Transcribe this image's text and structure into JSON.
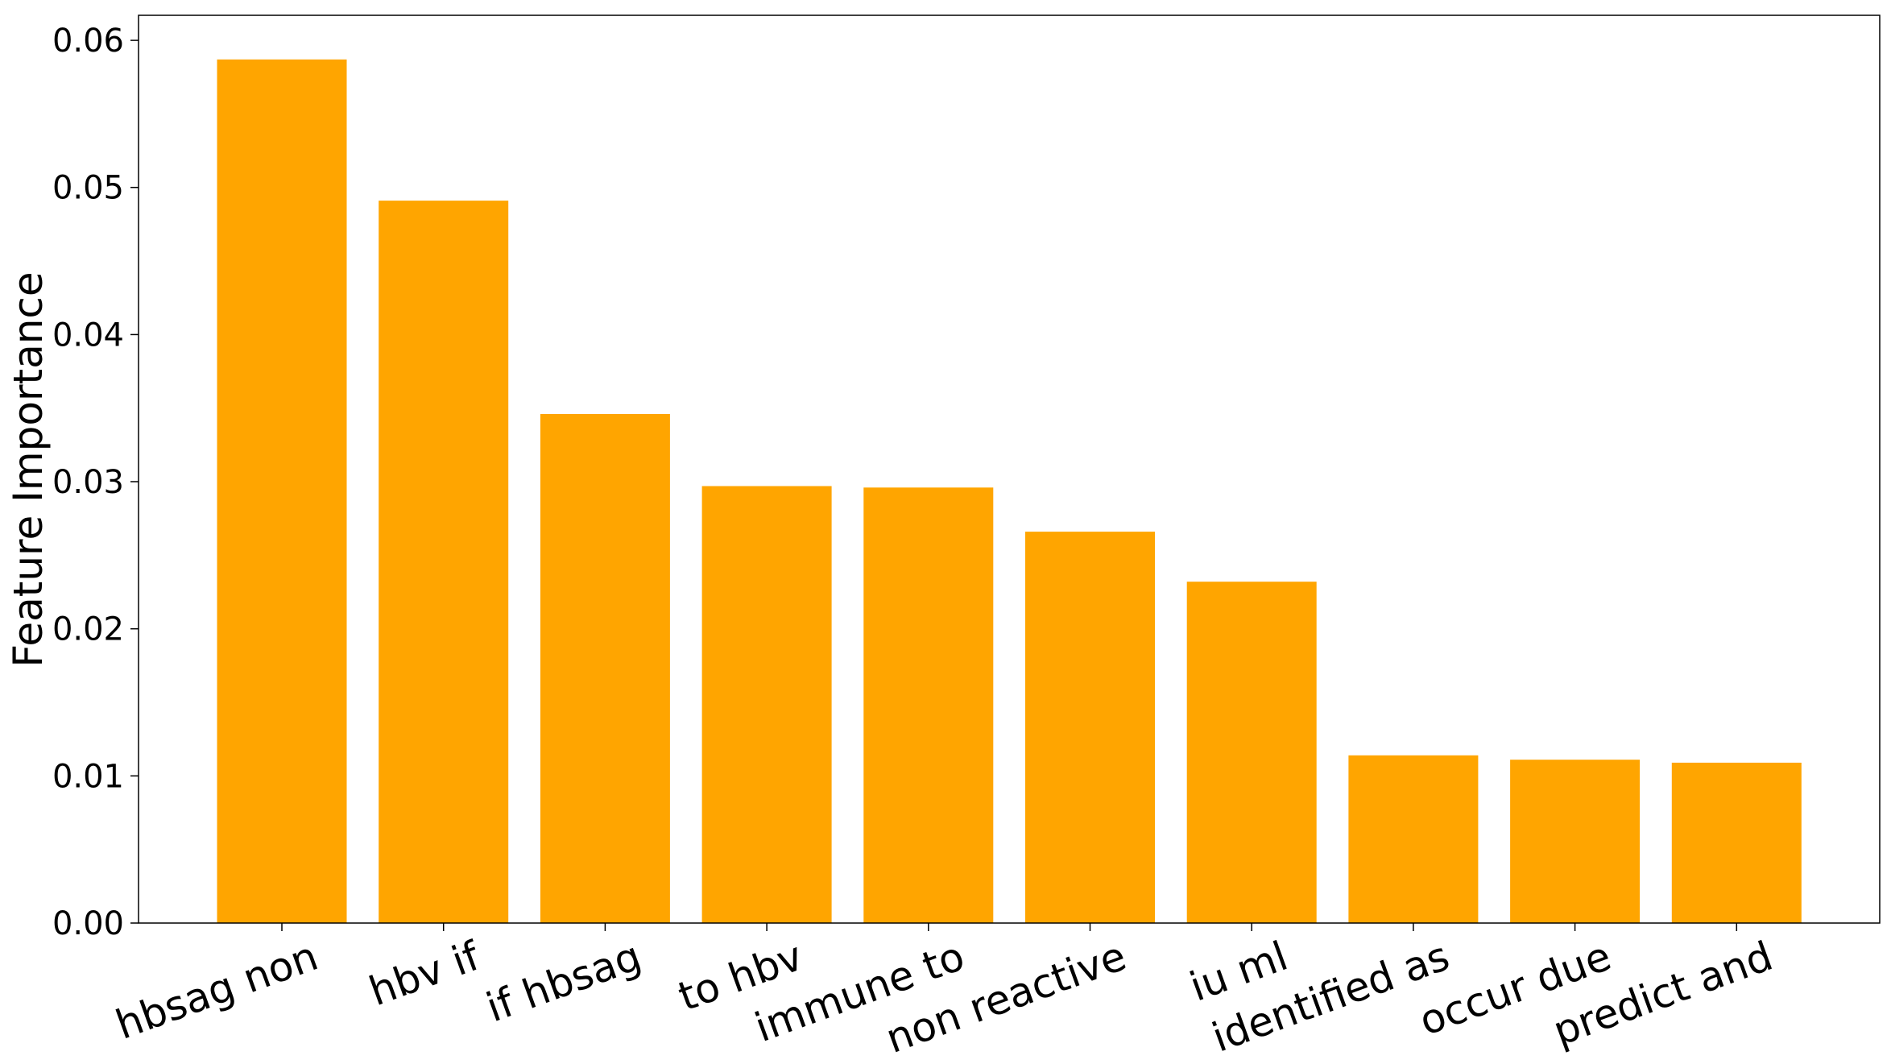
{
  "chart_data": {
    "type": "bar",
    "title": "",
    "xlabel": "",
    "ylabel": "Feature Importance",
    "categories": [
      "hbsag non",
      "hbv if",
      "if hbsag",
      "to hbv",
      "immune to",
      "non reactive",
      "iu ml",
      "identified as",
      "occur due",
      "predict and"
    ],
    "values": [
      0.0587,
      0.0491,
      0.0346,
      0.0297,
      0.0296,
      0.0266,
      0.0232,
      0.0114,
      0.0111,
      0.0109
    ],
    "ylim": [
      0,
      0.0617
    ],
    "yticks": [
      "0.00",
      "0.01",
      "0.02",
      "0.03",
      "0.04",
      "0.05",
      "0.06"
    ],
    "grid": false,
    "legend": "none",
    "bar_color": "#ffa500",
    "axis_color": "#000000"
  }
}
